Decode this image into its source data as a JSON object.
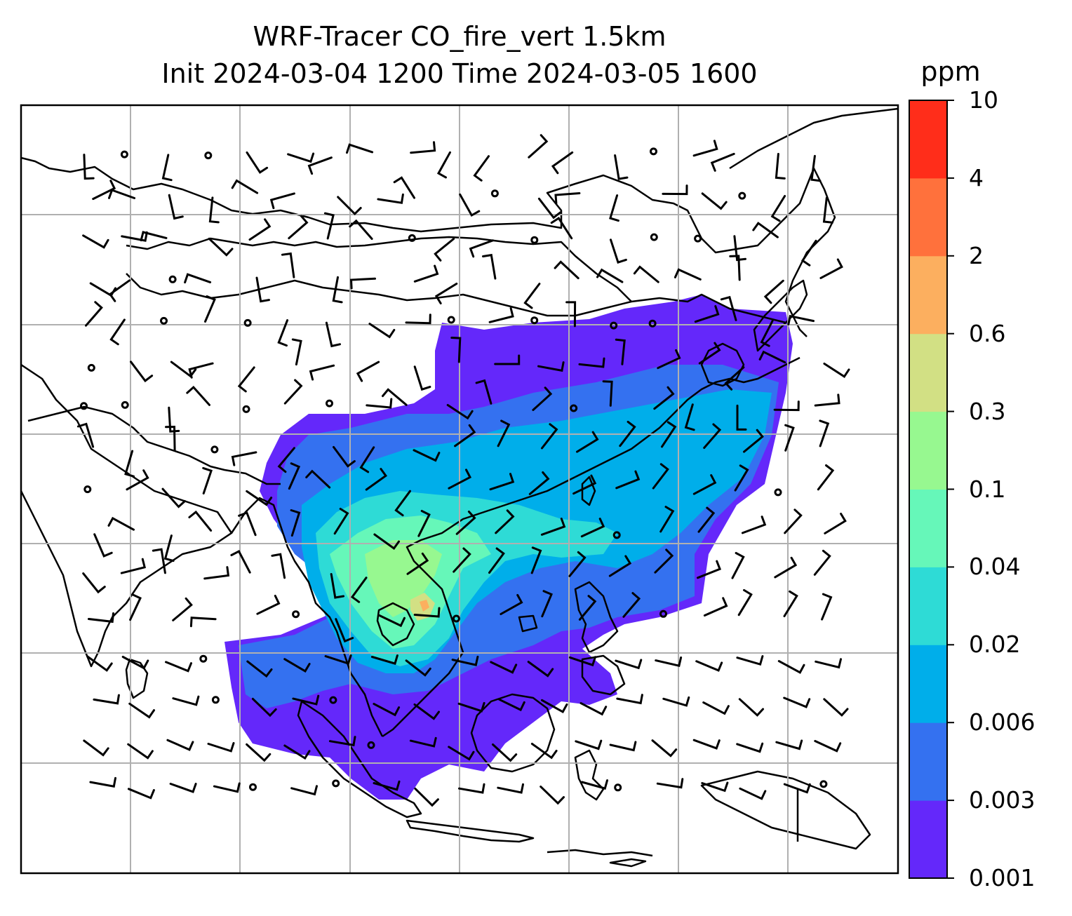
{
  "title": {
    "line1": "WRF-Tracer CO_fire_vert 1.5km",
    "line2": "Init 2024-03-04 1200 Time 2024-03-05 1600"
  },
  "colorbar": {
    "label": "ppm",
    "ticks": [
      "0.001",
      "0.003",
      "0.006",
      "0.02",
      "0.04",
      "0.1",
      "0.3",
      "0.6",
      "2",
      "4",
      "10"
    ],
    "colors": [
      "#6428fa",
      "#3471f0",
      "#00aeea",
      "#2edbd6",
      "#66f7b9",
      "#97f890",
      "#d2e084",
      "#fcaf5f",
      "#ff713c",
      "#ff2d1a"
    ]
  },
  "map": {
    "field": "CO_fire_vert",
    "level": "1.5km",
    "units": "ppm",
    "gridlines": true,
    "coastline_color": "#000000",
    "wind_barb_color": "#000000"
  }
}
